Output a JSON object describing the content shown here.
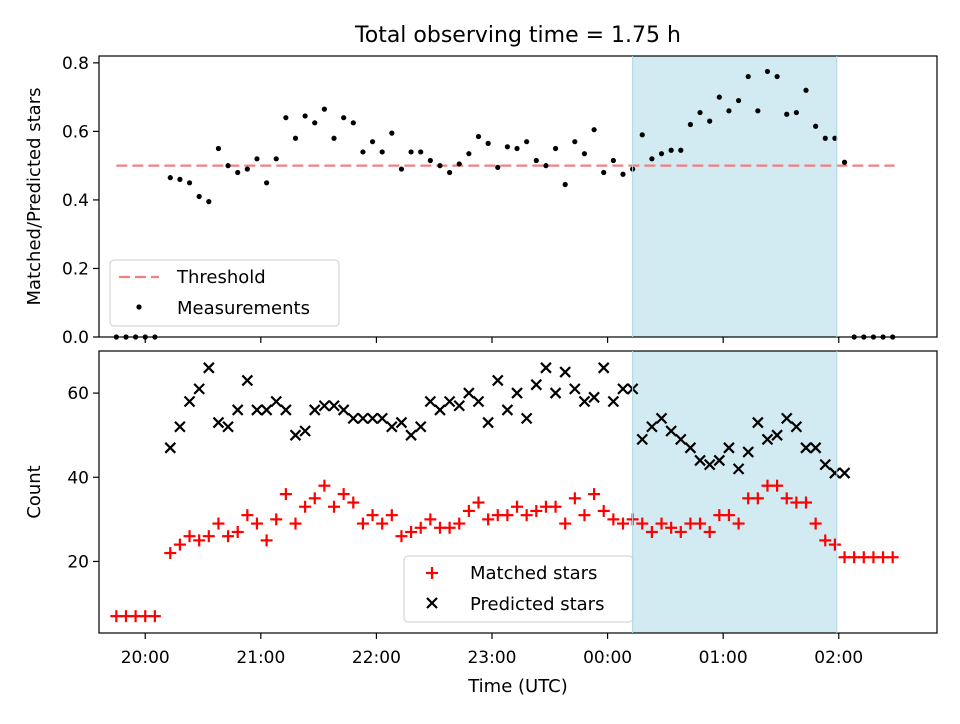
{
  "chart_data": [
    {
      "type": "scatter",
      "title": "Total observing time = 1.75 h",
      "xlabel": "",
      "ylabel": "Matched/Predicted stars",
      "xlim": [
        "19:36",
        "02:51"
      ],
      "ylim": [
        0,
        0.82
      ],
      "yticks": [
        0.0,
        0.2,
        0.4,
        0.6,
        0.8
      ],
      "ytick_labels": [
        "0.0",
        "0.2",
        "0.4",
        "0.6",
        "0.8"
      ],
      "highlight_span": {
        "start": "00:13",
        "end": "01:59",
        "color": "#add8e6"
      },
      "threshold": {
        "name": "Threshold",
        "value": 0.5,
        "x_start": "19:45",
        "x_end": "02:29",
        "color": "#f08080",
        "style": "dashed"
      },
      "series": [
        {
          "name": "Measurements",
          "marker": "dot",
          "color": "#000000",
          "points": [
            [
              "19:45",
              0.0
            ],
            [
              "19:50",
              0.0
            ],
            [
              "19:55",
              0.0
            ],
            [
              "20:00",
              0.0
            ],
            [
              "20:05",
              0.0
            ],
            [
              "20:13",
              0.465
            ],
            [
              "20:18",
              0.46
            ],
            [
              "20:23",
              0.45
            ],
            [
              "20:28",
              0.41
            ],
            [
              "20:33",
              0.395
            ],
            [
              "20:38",
              0.55
            ],
            [
              "20:43",
              0.5
            ],
            [
              "20:48",
              0.48
            ],
            [
              "20:53",
              0.49
            ],
            [
              "20:58",
              0.52
            ],
            [
              "21:03",
              0.45
            ],
            [
              "21:08",
              0.52
            ],
            [
              "21:13",
              0.64
            ],
            [
              "21:18",
              0.58
            ],
            [
              "21:23",
              0.645
            ],
            [
              "21:28",
              0.625
            ],
            [
              "21:33",
              0.665
            ],
            [
              "21:38",
              0.58
            ],
            [
              "21:43",
              0.64
            ],
            [
              "21:48",
              0.625
            ],
            [
              "21:53",
              0.54
            ],
            [
              "21:58",
              0.57
            ],
            [
              "22:03",
              0.54
            ],
            [
              "22:08",
              0.595
            ],
            [
              "22:13",
              0.49
            ],
            [
              "22:18",
              0.54
            ],
            [
              "22:23",
              0.54
            ],
            [
              "22:28",
              0.515
            ],
            [
              "22:33",
              0.5
            ],
            [
              "22:38",
              0.48
            ],
            [
              "22:43",
              0.505
            ],
            [
              "22:48",
              0.535
            ],
            [
              "22:53",
              0.585
            ],
            [
              "22:58",
              0.565
            ],
            [
              "23:03",
              0.495
            ],
            [
              "23:08",
              0.555
            ],
            [
              "23:13",
              0.55
            ],
            [
              "23:18",
              0.57
            ],
            [
              "23:23",
              0.515
            ],
            [
              "23:28",
              0.5
            ],
            [
              "23:33",
              0.55
            ],
            [
              "23:38",
              0.445
            ],
            [
              "23:43",
              0.57
            ],
            [
              "23:48",
              0.535
            ],
            [
              "23:53",
              0.605
            ],
            [
              "23:58",
              0.48
            ],
            [
              "00:03",
              0.515
            ],
            [
              "00:08",
              0.475
            ],
            [
              "00:13",
              0.49
            ],
            [
              "00:18",
              0.59
            ],
            [
              "00:23",
              0.52
            ],
            [
              "00:28",
              0.535
            ],
            [
              "00:33",
              0.545
            ],
            [
              "00:38",
              0.545
            ],
            [
              "00:43",
              0.62
            ],
            [
              "00:48",
              0.655
            ],
            [
              "00:53",
              0.63
            ],
            [
              "00:58",
              0.7
            ],
            [
              "01:03",
              0.66
            ],
            [
              "01:08",
              0.69
            ],
            [
              "01:13",
              0.76
            ],
            [
              "01:18",
              0.66
            ],
            [
              "01:23",
              0.775
            ],
            [
              "01:28",
              0.76
            ],
            [
              "01:33",
              0.65
            ],
            [
              "01:38",
              0.655
            ],
            [
              "01:43",
              0.72
            ],
            [
              "01:48",
              0.615
            ],
            [
              "01:53",
              0.58
            ],
            [
              "01:58",
              0.58
            ],
            [
              "02:03",
              0.51
            ],
            [
              "02:08",
              0.0
            ],
            [
              "02:13",
              0.0
            ],
            [
              "02:18",
              0.0
            ],
            [
              "02:23",
              0.0
            ],
            [
              "02:28",
              0.0
            ]
          ]
        }
      ],
      "legend": {
        "placement": "lower-left",
        "entries": [
          "Threshold",
          "Measurements"
        ]
      }
    },
    {
      "type": "scatter",
      "title": "",
      "xlabel": "Time (UTC)",
      "ylabel": "Count",
      "xlim": [
        "19:36",
        "02:51"
      ],
      "ylim": [
        3,
        70
      ],
      "yticks": [
        20,
        40,
        60
      ],
      "ytick_labels": [
        "20",
        "40",
        "60"
      ],
      "xticks": [
        "20:00",
        "21:00",
        "22:00",
        "23:00",
        "00:00",
        "01:00",
        "02:00"
      ],
      "highlight_span": {
        "start": "00:13",
        "end": "01:59",
        "color": "#add8e6"
      },
      "series": [
        {
          "name": "Matched stars",
          "marker": "plus",
          "color": "#ff0000",
          "points": [
            [
              "19:45",
              7
            ],
            [
              "19:50",
              7
            ],
            [
              "19:55",
              7
            ],
            [
              "20:00",
              7
            ],
            [
              "20:05",
              7
            ],
            [
              "20:13",
              22
            ],
            [
              "20:18",
              24
            ],
            [
              "20:23",
              26
            ],
            [
              "20:28",
              25
            ],
            [
              "20:33",
              26
            ],
            [
              "20:38",
              29
            ],
            [
              "20:43",
              26
            ],
            [
              "20:48",
              27
            ],
            [
              "20:53",
              31
            ],
            [
              "20:58",
              29
            ],
            [
              "21:03",
              25
            ],
            [
              "21:08",
              30
            ],
            [
              "21:13",
              36
            ],
            [
              "21:18",
              29
            ],
            [
              "21:23",
              33
            ],
            [
              "21:28",
              35
            ],
            [
              "21:33",
              38
            ],
            [
              "21:38",
              33
            ],
            [
              "21:43",
              36
            ],
            [
              "21:48",
              34
            ],
            [
              "21:53",
              29
            ],
            [
              "21:58",
              31
            ],
            [
              "22:03",
              29
            ],
            [
              "22:08",
              31
            ],
            [
              "22:13",
              26
            ],
            [
              "22:18",
              27
            ],
            [
              "22:23",
              28
            ],
            [
              "22:28",
              30
            ],
            [
              "22:33",
              28
            ],
            [
              "22:38",
              28
            ],
            [
              "22:43",
              29
            ],
            [
              "22:48",
              32
            ],
            [
              "22:53",
              34
            ],
            [
              "22:58",
              30
            ],
            [
              "23:03",
              31
            ],
            [
              "23:08",
              31
            ],
            [
              "23:13",
              33
            ],
            [
              "23:18",
              31
            ],
            [
              "23:23",
              32
            ],
            [
              "23:28",
              33
            ],
            [
              "23:33",
              33
            ],
            [
              "23:38",
              29
            ],
            [
              "23:43",
              35
            ],
            [
              "23:48",
              31
            ],
            [
              "23:53",
              36
            ],
            [
              "23:58",
              32
            ],
            [
              "00:03",
              30
            ],
            [
              "00:08",
              29
            ],
            [
              "00:13",
              30
            ],
            [
              "00:18",
              29
            ],
            [
              "00:23",
              27
            ],
            [
              "00:28",
              29
            ],
            [
              "00:33",
              28
            ],
            [
              "00:38",
              27
            ],
            [
              "00:43",
              29
            ],
            [
              "00:48",
              29
            ],
            [
              "00:53",
              27
            ],
            [
              "00:58",
              31
            ],
            [
              "01:03",
              31
            ],
            [
              "01:08",
              29
            ],
            [
              "01:13",
              35
            ],
            [
              "01:18",
              35
            ],
            [
              "01:23",
              38
            ],
            [
              "01:28",
              38
            ],
            [
              "01:33",
              35
            ],
            [
              "01:38",
              34
            ],
            [
              "01:43",
              34
            ],
            [
              "01:48",
              29
            ],
            [
              "01:53",
              25
            ],
            [
              "01:58",
              24
            ],
            [
              "02:03",
              21
            ],
            [
              "02:08",
              21
            ],
            [
              "02:13",
              21
            ],
            [
              "02:18",
              21
            ],
            [
              "02:23",
              21
            ],
            [
              "02:28",
              21
            ]
          ]
        },
        {
          "name": "Predicted stars",
          "marker": "x",
          "color": "#000000",
          "points": [
            [
              "20:13",
              47
            ],
            [
              "20:18",
              52
            ],
            [
              "20:23",
              58
            ],
            [
              "20:28",
              61
            ],
            [
              "20:33",
              66
            ],
            [
              "20:38",
              53
            ],
            [
              "20:43",
              52
            ],
            [
              "20:48",
              56
            ],
            [
              "20:53",
              63
            ],
            [
              "20:58",
              56
            ],
            [
              "21:03",
              56
            ],
            [
              "21:08",
              58
            ],
            [
              "21:13",
              56
            ],
            [
              "21:18",
              50
            ],
            [
              "21:23",
              51
            ],
            [
              "21:28",
              56
            ],
            [
              "21:33",
              57
            ],
            [
              "21:38",
              57
            ],
            [
              "21:43",
              56
            ],
            [
              "21:48",
              54
            ],
            [
              "21:53",
              54
            ],
            [
              "21:58",
              54
            ],
            [
              "22:03",
              54
            ],
            [
              "22:08",
              52
            ],
            [
              "22:13",
              53
            ],
            [
              "22:18",
              50
            ],
            [
              "22:23",
              52
            ],
            [
              "22:28",
              58
            ],
            [
              "22:33",
              56
            ],
            [
              "22:38",
              58
            ],
            [
              "22:43",
              57
            ],
            [
              "22:48",
              60
            ],
            [
              "22:53",
              58
            ],
            [
              "22:58",
              53
            ],
            [
              "23:03",
              63
            ],
            [
              "23:08",
              56
            ],
            [
              "23:13",
              60
            ],
            [
              "23:18",
              54
            ],
            [
              "23:23",
              62
            ],
            [
              "23:28",
              66
            ],
            [
              "23:33",
              60
            ],
            [
              "23:38",
              65
            ],
            [
              "23:43",
              61
            ],
            [
              "23:48",
              58
            ],
            [
              "23:53",
              59
            ],
            [
              "23:58",
              66
            ],
            [
              "00:03",
              58
            ],
            [
              "00:08",
              61
            ],
            [
              "00:13",
              61
            ],
            [
              "00:18",
              49
            ],
            [
              "00:23",
              52
            ],
            [
              "00:28",
              54
            ],
            [
              "00:33",
              51
            ],
            [
              "00:38",
              49
            ],
            [
              "00:43",
              47
            ],
            [
              "00:48",
              44
            ],
            [
              "00:53",
              43
            ],
            [
              "00:58",
              44
            ],
            [
              "01:03",
              47
            ],
            [
              "01:08",
              42
            ],
            [
              "01:13",
              46
            ],
            [
              "01:18",
              53
            ],
            [
              "01:23",
              49
            ],
            [
              "01:28",
              50
            ],
            [
              "01:33",
              54
            ],
            [
              "01:38",
              52
            ],
            [
              "01:43",
              47
            ],
            [
              "01:48",
              47
            ],
            [
              "01:53",
              43
            ],
            [
              "01:58",
              41
            ],
            [
              "02:03",
              41
            ]
          ]
        }
      ],
      "legend": {
        "placement": "lower-center",
        "entries": [
          "Matched stars",
          "Predicted stars"
        ]
      }
    }
  ]
}
